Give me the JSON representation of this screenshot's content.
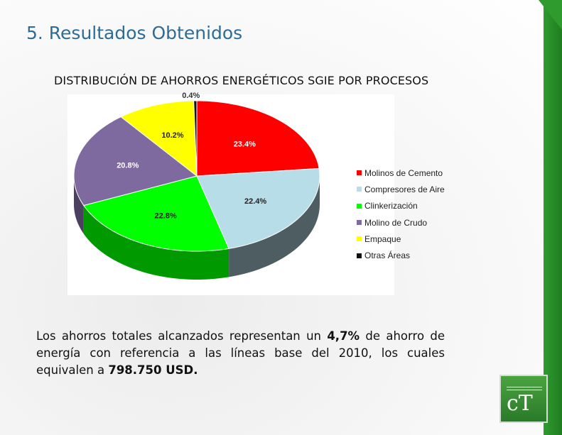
{
  "slide": {
    "title": "5. Resultados Obtenidos",
    "chart_title": "DISTRIBUCIÓN DE AHORROS ENERGÉTICOS SGIE POR PROCESOS",
    "body_part1": "Los ahorros totales alcanzados representan un ",
    "body_bold1": "4,7%",
    "body_part2": " de ahorro de energía con referencia a las líneas base del 2010, los cuales equivalen a ",
    "body_bold2": "798.750 USD.",
    "logo_icon": "ct-logo"
  },
  "chart_data": {
    "type": "pie",
    "title": "DISTRIBUCIÓN DE AHORROS ENERGÉTICOS SGIE POR PROCESOS",
    "categories": [
      "Molinos de Cemento",
      "Compresores de Aire",
      "Clinkerización",
      "Molino de Crudo",
      "Empaque",
      "Otras Áreas"
    ],
    "values": [
      23.4,
      22.4,
      22.8,
      20.8,
      10.2,
      0.4
    ],
    "labels": [
      "23.4%",
      "22.4%",
      "22.8%",
      "20.8%",
      "10.2%",
      "0.4%"
    ],
    "colors": [
      "#ff0000",
      "#b7dde8",
      "#00ff00",
      "#7f6a9f",
      "#ffff00",
      "#111111"
    ],
    "legend": "right",
    "style": "3d"
  }
}
